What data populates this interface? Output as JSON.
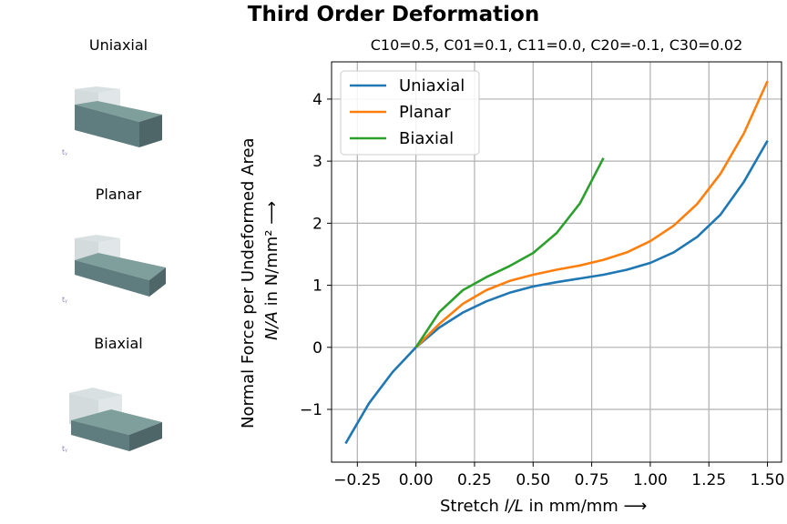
{
  "figure_title": "Third Order Deformation",
  "thumbnails": [
    {
      "title": "Uniaxial",
      "axes_label": "tᵧ"
    },
    {
      "title": "Planar",
      "axes_label": "tᵧ"
    },
    {
      "title": "Biaxial",
      "axes_label": "tᵧ"
    }
  ],
  "colors": {
    "uniaxial": "#1f77b4",
    "planar": "#ff7f0e",
    "biaxial": "#2ca02c",
    "grid": "#b0b0b0",
    "block_top": "#7f9f9c",
    "block_front": "#5f7d7e",
    "block_side": "#4e6668",
    "ghost": "#c8d2d4"
  },
  "chart_data": {
    "type": "line",
    "title": "C10=0.5, C01=0.1, C11=0.0, C20=-0.1, C30=0.02",
    "xlabel_main": "Stretch",
    "xlabel_var": "l/L",
    "xlabel_unit": "in mm/mm ⟶",
    "ylabel_line1": "Normal Force per Undeformed Area",
    "ylabel_var": "N/A",
    "ylabel_unit": "in N/mm² ⟶",
    "xlim": [
      -0.36,
      1.56
    ],
    "ylim": [
      -1.85,
      4.6
    ],
    "xticks": [
      -0.25,
      0.0,
      0.25,
      0.5,
      0.75,
      1.0,
      1.25,
      1.5
    ],
    "xtick_labels": [
      "−0.25",
      "0.00",
      "0.25",
      "0.50",
      "0.75",
      "1.00",
      "1.25",
      "1.50"
    ],
    "yticks": [
      -1,
      0,
      1,
      2,
      3,
      4
    ],
    "ytick_labels": [
      "−1",
      "0",
      "1",
      "2",
      "3",
      "4"
    ],
    "grid": true,
    "legend_position": "top-left",
    "series": [
      {
        "name": "Uniaxial",
        "color_key": "uniaxial",
        "x": [
          -0.3,
          -0.2,
          -0.1,
          0.0,
          0.1,
          0.2,
          0.3,
          0.4,
          0.5,
          0.6,
          0.7,
          0.8,
          0.9,
          1.0,
          1.1,
          1.2,
          1.3,
          1.4,
          1.5
        ],
        "y": [
          -1.55,
          -0.9,
          -0.4,
          0.0,
          0.32,
          0.56,
          0.74,
          0.88,
          0.98,
          1.05,
          1.11,
          1.17,
          1.25,
          1.36,
          1.53,
          1.78,
          2.14,
          2.67,
          3.33
        ]
      },
      {
        "name": "Planar",
        "color_key": "planar",
        "x": [
          0.0,
          0.1,
          0.2,
          0.3,
          0.4,
          0.5,
          0.6,
          0.7,
          0.8,
          0.9,
          1.0,
          1.1,
          1.2,
          1.3,
          1.4,
          1.5
        ],
        "y": [
          0.0,
          0.38,
          0.7,
          0.92,
          1.07,
          1.17,
          1.25,
          1.32,
          1.41,
          1.53,
          1.71,
          1.96,
          2.31,
          2.8,
          3.45,
          4.29
        ]
      },
      {
        "name": "Biaxial",
        "color_key": "biaxial",
        "x": [
          0.0,
          0.1,
          0.2,
          0.3,
          0.4,
          0.5,
          0.6,
          0.7,
          0.8
        ],
        "y": [
          0.0,
          0.57,
          0.92,
          1.13,
          1.31,
          1.52,
          1.84,
          2.32,
          3.05
        ]
      }
    ]
  }
}
